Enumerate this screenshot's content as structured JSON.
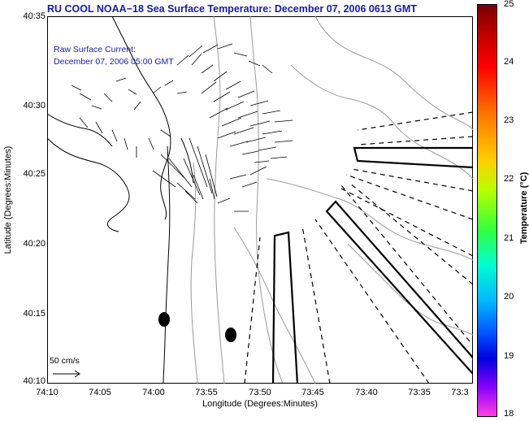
{
  "title": "RU COOL  NOAA−18  Sea Surface Temperature:  December 07, 2006 0613 GMT",
  "current": {
    "line1": "Raw Surface Current:",
    "line2": "December 07, 2006 05:00 GMT"
  },
  "axes": {
    "xlabel": "Longitude (Degrees:Minutes)",
    "ylabel": "Latitude (Degrees:Minutes)",
    "xticks": [
      "74:10",
      "74:05",
      "74:00",
      "73:55",
      "73:50",
      "73:45",
      "73:40",
      "73:35",
      "73:3"
    ],
    "yticks": [
      "40:35",
      "40:30",
      "40:25",
      "40:20",
      "40:15",
      "40:10"
    ]
  },
  "scale": {
    "label": "50 cm/s"
  },
  "colorbar": {
    "title": "Temperature (°C)",
    "ticks": [
      "25",
      "24",
      "23",
      "22",
      "21",
      "20",
      "19",
      "18"
    ]
  },
  "colors": {
    "title_text": "#1a1aa6",
    "land": "#000000",
    "contour": "#9a9a9a"
  }
}
